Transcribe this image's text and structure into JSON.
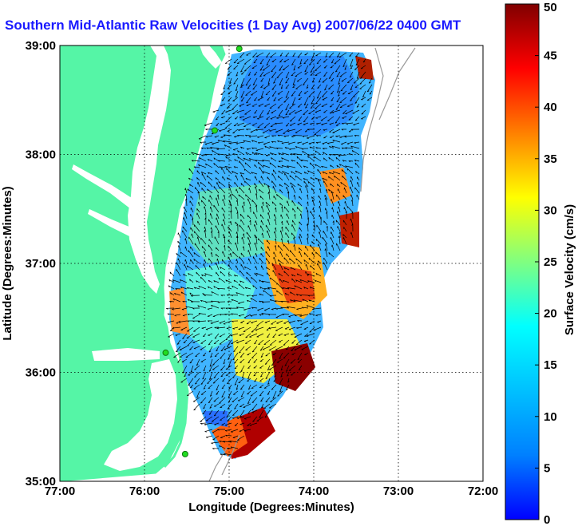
{
  "title": "Southern Mid-Atlantic Raw Velocities (1 Day Avg) 2007/06/22 0400 GMT",
  "map": {
    "xlabel": "Longitude (Degrees:Minutes)",
    "ylabel": "Latitude (Degrees:Minutes)",
    "lon_range": [
      -77.0,
      -72.0
    ],
    "lat_range": [
      35.0,
      39.0
    ],
    "lon_ticks": [
      "77:00",
      "76:00",
      "75:00",
      "74:00",
      "73:00",
      "72:00"
    ],
    "lat_ticks": [
      "35:00",
      "36:00",
      "37:00",
      "38:00",
      "39:00"
    ],
    "grid": "dotted",
    "land_color": "#55f5a6",
    "water_color": "#ffffff"
  },
  "colorbar": {
    "label": "Surface Velocity (cm/s)",
    "range": [
      0,
      50
    ],
    "ticks": [
      "0",
      "5",
      "10",
      "15",
      "20",
      "25",
      "30",
      "35",
      "40",
      "45",
      "50"
    ],
    "colormap": "jet"
  },
  "stations": [
    {
      "lon": -74.88,
      "lat": 38.97
    },
    {
      "lon": -75.17,
      "lat": 38.22
    },
    {
      "lon": -75.75,
      "lat": 36.18
    },
    {
      "lon": -75.52,
      "lat": 35.25
    }
  ]
}
